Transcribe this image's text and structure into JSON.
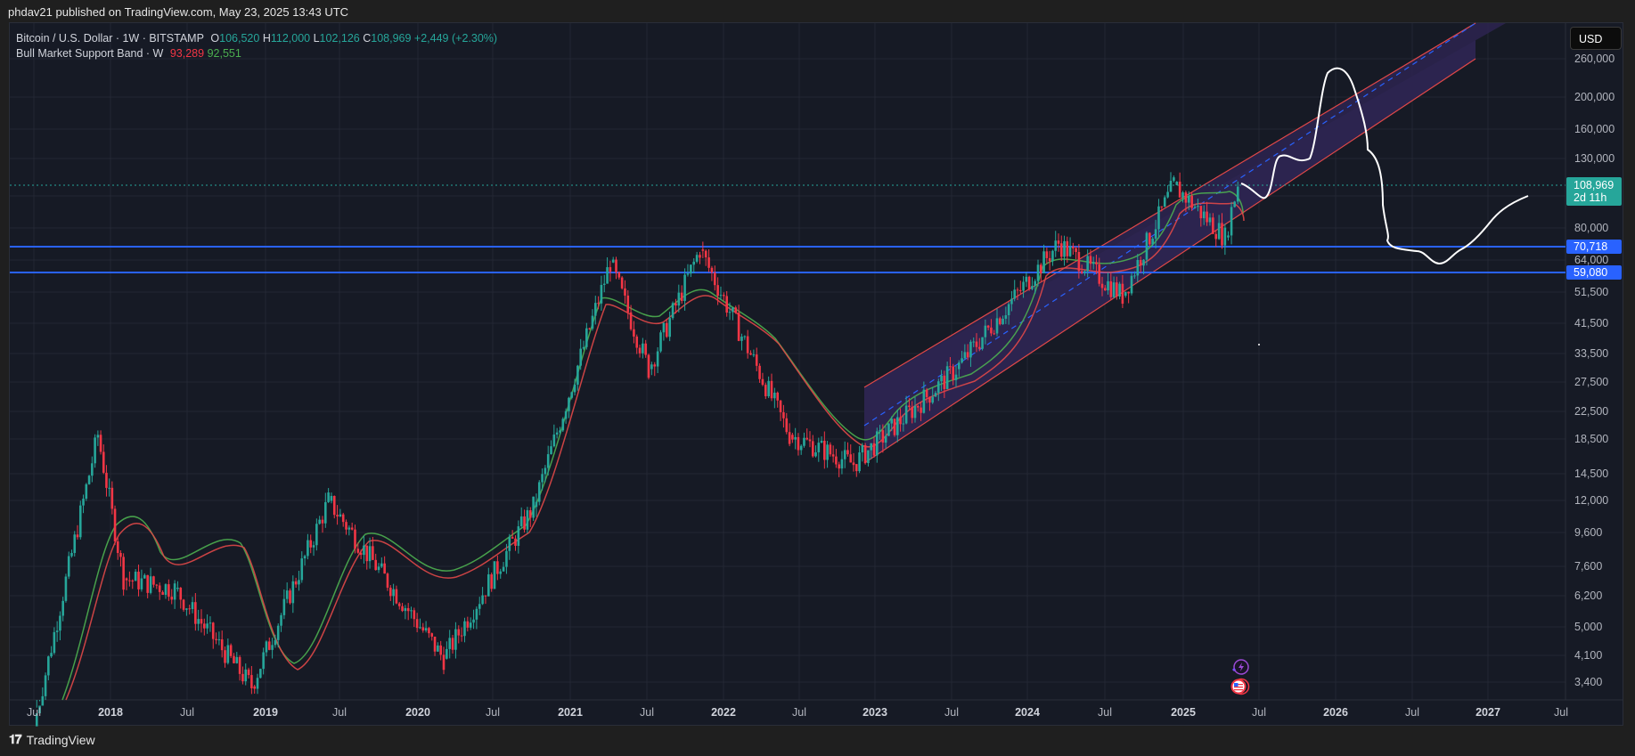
{
  "publish_bar": {
    "text": "phdav21 published on TradingView.com, May 23, 2025 13:43 UTC"
  },
  "legend": {
    "symbol": "Bitcoin / U.S. Dollar · 1W · BITSTAMP",
    "o_label": "O",
    "o_value": "106,520",
    "h_label": "H",
    "h_value": "112,000",
    "l_label": "L",
    "l_value": "102,126",
    "c_label": "C",
    "c_value": "108,969",
    "change": "+2,449 (+2.30%)",
    "indicator": "Bull Market Support Band · W",
    "ind_val1": "93,289",
    "ind_val2": "92,551"
  },
  "currency_button": "USD",
  "price_tags": {
    "last_price": "108,969",
    "countdown": "2d 11h",
    "level1": "70,718",
    "level2": "59,080"
  },
  "colors": {
    "up": "#26a69a",
    "down": "#f23645",
    "horizontal_line": "#2962ff",
    "channel_fill": "#2d2550",
    "channel_border": "#e04848",
    "band_fill": "#6b4a1a",
    "projection": "#ffffff"
  },
  "footer": {
    "brand": "TradingView"
  },
  "chart_data": {
    "type": "candlestick",
    "title": "Bitcoin / U.S. Dollar · 1W · BITSTAMP",
    "scale": "log",
    "ylabel": "USD",
    "y_ticks": [
      "260,000",
      "200,000",
      "160,000",
      "130,000",
      "80,000",
      "64,000",
      "51,500",
      "41,500",
      "33,500",
      "27,500",
      "22,500",
      "18,500",
      "14,500",
      "12,000",
      "9,600",
      "7,600",
      "6,200",
      "5,000",
      "4,100",
      "3,400"
    ],
    "x_ticks": [
      "Jul",
      "2018",
      "Jul",
      "2019",
      "Jul",
      "2020",
      "Jul",
      "2021",
      "Jul",
      "2022",
      "Jul",
      "2023",
      "Jul",
      "2024",
      "Jul",
      "2025",
      "Jul",
      "2026",
      "Jul",
      "2027",
      "Jul"
    ],
    "ohlc_last": {
      "open": 106520,
      "high": 112000,
      "low": 102126,
      "close": 108969,
      "change": 2449,
      "change_pct": 2.3
    },
    "indicator": {
      "name": "Bull Market Support Band",
      "timeframe": "W",
      "values": [
        93289,
        92551
      ]
    },
    "horizontal_lines": [
      70718,
      59080
    ],
    "approx_price_path": [
      {
        "date": "2017-07",
        "price": 2500
      },
      {
        "date": "2017-12",
        "price": 19000
      },
      {
        "date": "2018-02",
        "price": 7000
      },
      {
        "date": "2018-06",
        "price": 6500
      },
      {
        "date": "2018-12",
        "price": 3300
      },
      {
        "date": "2019-06",
        "price": 12000
      },
      {
        "date": "2020-03",
        "price": 4000
      },
      {
        "date": "2020-10",
        "price": 11500
      },
      {
        "date": "2021-04",
        "price": 63000
      },
      {
        "date": "2021-07",
        "price": 30000
      },
      {
        "date": "2021-11",
        "price": 69000
      },
      {
        "date": "2022-06",
        "price": 19000
      },
      {
        "date": "2022-11",
        "price": 15500
      },
      {
        "date": "2023-07",
        "price": 30000
      },
      {
        "date": "2024-03",
        "price": 72000
      },
      {
        "date": "2024-08",
        "price": 50000
      },
      {
        "date": "2024-12",
        "price": 108000
      },
      {
        "date": "2025-04",
        "price": 75000
      },
      {
        "date": "2025-05",
        "price": 108969
      }
    ],
    "annotations": [
      {
        "type": "ascending_channel",
        "start": "2022-11",
        "end": "2026-12",
        "lower_start": 15500,
        "upper_start": 27000
      },
      {
        "type": "drawn_projection",
        "points": [
          {
            "date": "2025-06",
            "price": 100000
          },
          {
            "date": "2025-09",
            "price": 125000
          },
          {
            "date": "2025-12",
            "price": 250000
          },
          {
            "date": "2026-04",
            "price": 68000
          },
          {
            "date": "2026-09",
            "price": 58000
          },
          {
            "date": "2027-06",
            "price": 95000
          }
        ]
      }
    ],
    "legend_position": "top-left",
    "grid": true
  }
}
